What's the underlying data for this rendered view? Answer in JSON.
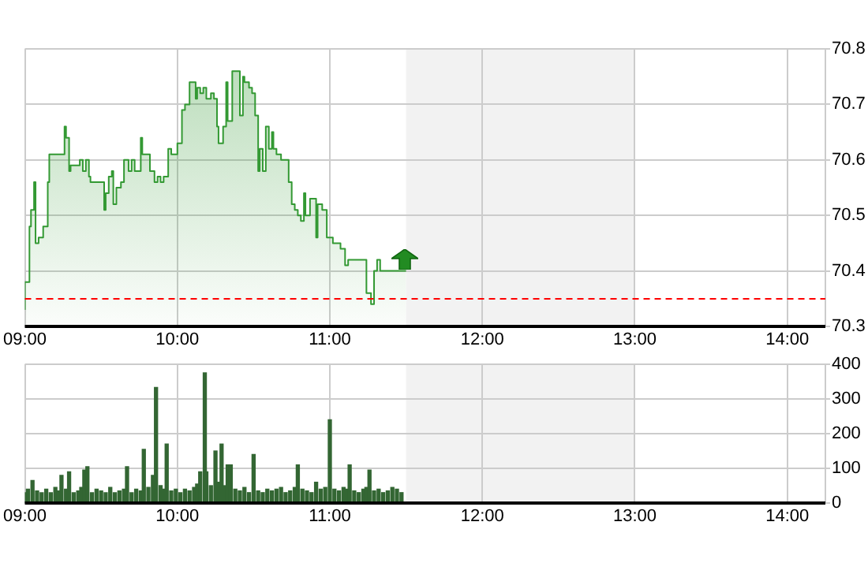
{
  "chart_data": [
    {
      "type": "area",
      "color": "#339933",
      "x": [
        9.0,
        9.01,
        9.03,
        9.04,
        9.06,
        9.07,
        9.09,
        9.12,
        9.15,
        9.16,
        9.17,
        9.21,
        9.24,
        9.26,
        9.27,
        9.29,
        9.3,
        9.34,
        9.36,
        9.38,
        9.4,
        9.42,
        9.43,
        9.45,
        9.48,
        9.5,
        9.52,
        9.53,
        9.55,
        9.57,
        9.58,
        9.6,
        9.63,
        9.65,
        9.68,
        9.7,
        9.72,
        9.76,
        9.77,
        9.8,
        9.82,
        9.85,
        9.87,
        9.89,
        9.91,
        9.94,
        9.96,
        10.0,
        10.03,
        10.05,
        10.08,
        10.09,
        10.12,
        10.13,
        10.15,
        10.17,
        10.19,
        10.22,
        10.24,
        10.26,
        10.27,
        10.3,
        10.32,
        10.33,
        10.36,
        10.38,
        10.41,
        10.43,
        10.44,
        10.47,
        10.49,
        10.51,
        10.53,
        10.54,
        10.56,
        10.58,
        10.6,
        10.62,
        10.63,
        10.65,
        10.68,
        10.7,
        10.73,
        10.75,
        10.77,
        10.79,
        10.81,
        10.83,
        10.84,
        10.87,
        10.91,
        10.92,
        10.95,
        10.98,
        10.99,
        11.02,
        11.04,
        11.07,
        11.1,
        11.12,
        11.15,
        11.18,
        11.24,
        11.25,
        11.27,
        11.29,
        11.3,
        11.31,
        11.33,
        11.35,
        11.39,
        11.5
      ],
      "values": [
        70.33,
        70.38,
        70.38,
        70.48,
        70.51,
        70.56,
        70.45,
        70.46,
        70.48,
        70.56,
        70.61,
        70.61,
        70.61,
        70.61,
        70.66,
        70.64,
        70.58,
        70.59,
        70.59,
        70.6,
        70.58,
        70.6,
        70.57,
        70.56,
        70.56,
        70.56,
        70.56,
        70.51,
        70.54,
        70.57,
        70.58,
        70.52,
        70.55,
        70.56,
        70.6,
        70.58,
        70.6,
        70.58,
        70.64,
        70.61,
        70.61,
        70.58,
        70.56,
        70.57,
        70.56,
        70.57,
        70.62,
        70.61,
        70.63,
        70.69,
        70.7,
        70.74,
        70.74,
        70.71,
        70.73,
        70.72,
        70.73,
        70.71,
        70.72,
        70.71,
        70.66,
        70.63,
        70.66,
        70.74,
        70.67,
        70.76,
        70.76,
        70.68,
        70.75,
        70.74,
        70.73,
        70.72,
        70.68,
        70.58,
        70.62,
        70.58,
        70.66,
        70.62,
        70.65,
        70.62,
        70.61,
        70.6,
        70.6,
        70.56,
        70.52,
        70.51,
        70.5,
        70.49,
        70.54,
        70.5,
        70.53,
        70.46,
        70.52,
        70.51,
        70.46,
        70.46,
        70.45,
        70.45,
        70.44,
        70.41,
        70.42,
        70.42,
        70.42,
        70.36,
        70.36,
        70.34,
        70.4,
        70.4,
        70.42,
        70.4,
        70.4,
        70.4
      ],
      "xlim": [
        9,
        14.25
      ],
      "xticks": [
        {
          "value": 9,
          "label": "09:00"
        },
        {
          "value": 10,
          "label": "10:00"
        },
        {
          "value": 11,
          "label": "11:00"
        },
        {
          "value": 12,
          "label": "12:00"
        },
        {
          "value": 13,
          "label": "13:00"
        },
        {
          "value": 14,
          "label": "14:00"
        }
      ],
      "ylim": [
        70.3,
        70.8
      ],
      "yticks": [
        70.3,
        70.4,
        70.5,
        70.6,
        70.7,
        70.8
      ],
      "grid": true,
      "ref_lines": [
        {
          "axis": "y",
          "value": 70.35,
          "color": "#ff0000",
          "line_style": "dashed"
        }
      ],
      "bands": [
        {
          "axis": "x",
          "from": 11.5,
          "to": 13,
          "color": "#f2f2f2"
        }
      ]
    },
    {
      "type": "bar",
      "color": "#336633",
      "x": [
        9.0,
        9.02,
        9.05,
        9.08,
        9.11,
        9.14,
        9.17,
        9.2,
        9.22,
        9.24,
        9.27,
        9.29,
        9.32,
        9.35,
        9.37,
        9.39,
        9.41,
        9.44,
        9.47,
        9.5,
        9.53,
        9.56,
        9.59,
        9.62,
        9.65,
        9.67,
        9.7,
        9.73,
        9.76,
        9.78,
        9.81,
        9.84,
        9.86,
        9.89,
        9.91,
        9.93,
        9.96,
        9.99,
        10.02,
        10.05,
        10.08,
        10.11,
        10.13,
        10.15,
        10.18,
        10.19,
        10.22,
        10.25,
        10.27,
        10.29,
        10.31,
        10.33,
        10.35,
        10.38,
        10.41,
        10.44,
        10.47,
        10.5,
        10.53,
        10.56,
        10.59,
        10.62,
        10.65,
        10.68,
        10.71,
        10.74,
        10.77,
        10.79,
        10.82,
        10.85,
        10.88,
        10.91,
        10.94,
        10.97,
        11.0,
        11.03,
        11.06,
        11.09,
        11.11,
        11.13,
        11.16,
        11.19,
        11.22,
        11.24,
        11.26,
        11.29,
        11.32,
        11.35,
        11.38,
        11.41,
        11.44,
        11.47
      ],
      "values": [
        30,
        40,
        65,
        35,
        30,
        40,
        30,
        45,
        35,
        80,
        40,
        90,
        30,
        35,
        45,
        95,
        105,
        30,
        40,
        35,
        30,
        45,
        30,
        35,
        40,
        105,
        30,
        40,
        35,
        155,
        45,
        80,
        333,
        50,
        40,
        170,
        35,
        40,
        30,
        40,
        35,
        45,
        55,
        90,
        375,
        90,
        50,
        150,
        60,
        170,
        50,
        110,
        110,
        40,
        35,
        45,
        30,
        140,
        35,
        30,
        40,
        35,
        40,
        45,
        30,
        35,
        45,
        110,
        40,
        35,
        30,
        60,
        40,
        45,
        240,
        40,
        35,
        45,
        40,
        110,
        35,
        30,
        40,
        45,
        95,
        35,
        40,
        30,
        35,
        45,
        40,
        30
      ],
      "xlim": [
        9,
        14.25
      ],
      "xticks": [
        {
          "value": 9,
          "label": "09:00"
        },
        {
          "value": 10,
          "label": "10:00"
        },
        {
          "value": 11,
          "label": "11:00"
        },
        {
          "value": 12,
          "label": "12:00"
        },
        {
          "value": 13,
          "label": "13:00"
        },
        {
          "value": 14,
          "label": "14:00"
        }
      ],
      "ylim": [
        0,
        400
      ],
      "yticks": [
        0,
        100,
        200,
        300,
        400
      ],
      "grid": true,
      "bands": [
        {
          "axis": "x",
          "from": 11.5,
          "to": 13,
          "color": "#f2f2f2"
        }
      ]
    }
  ]
}
